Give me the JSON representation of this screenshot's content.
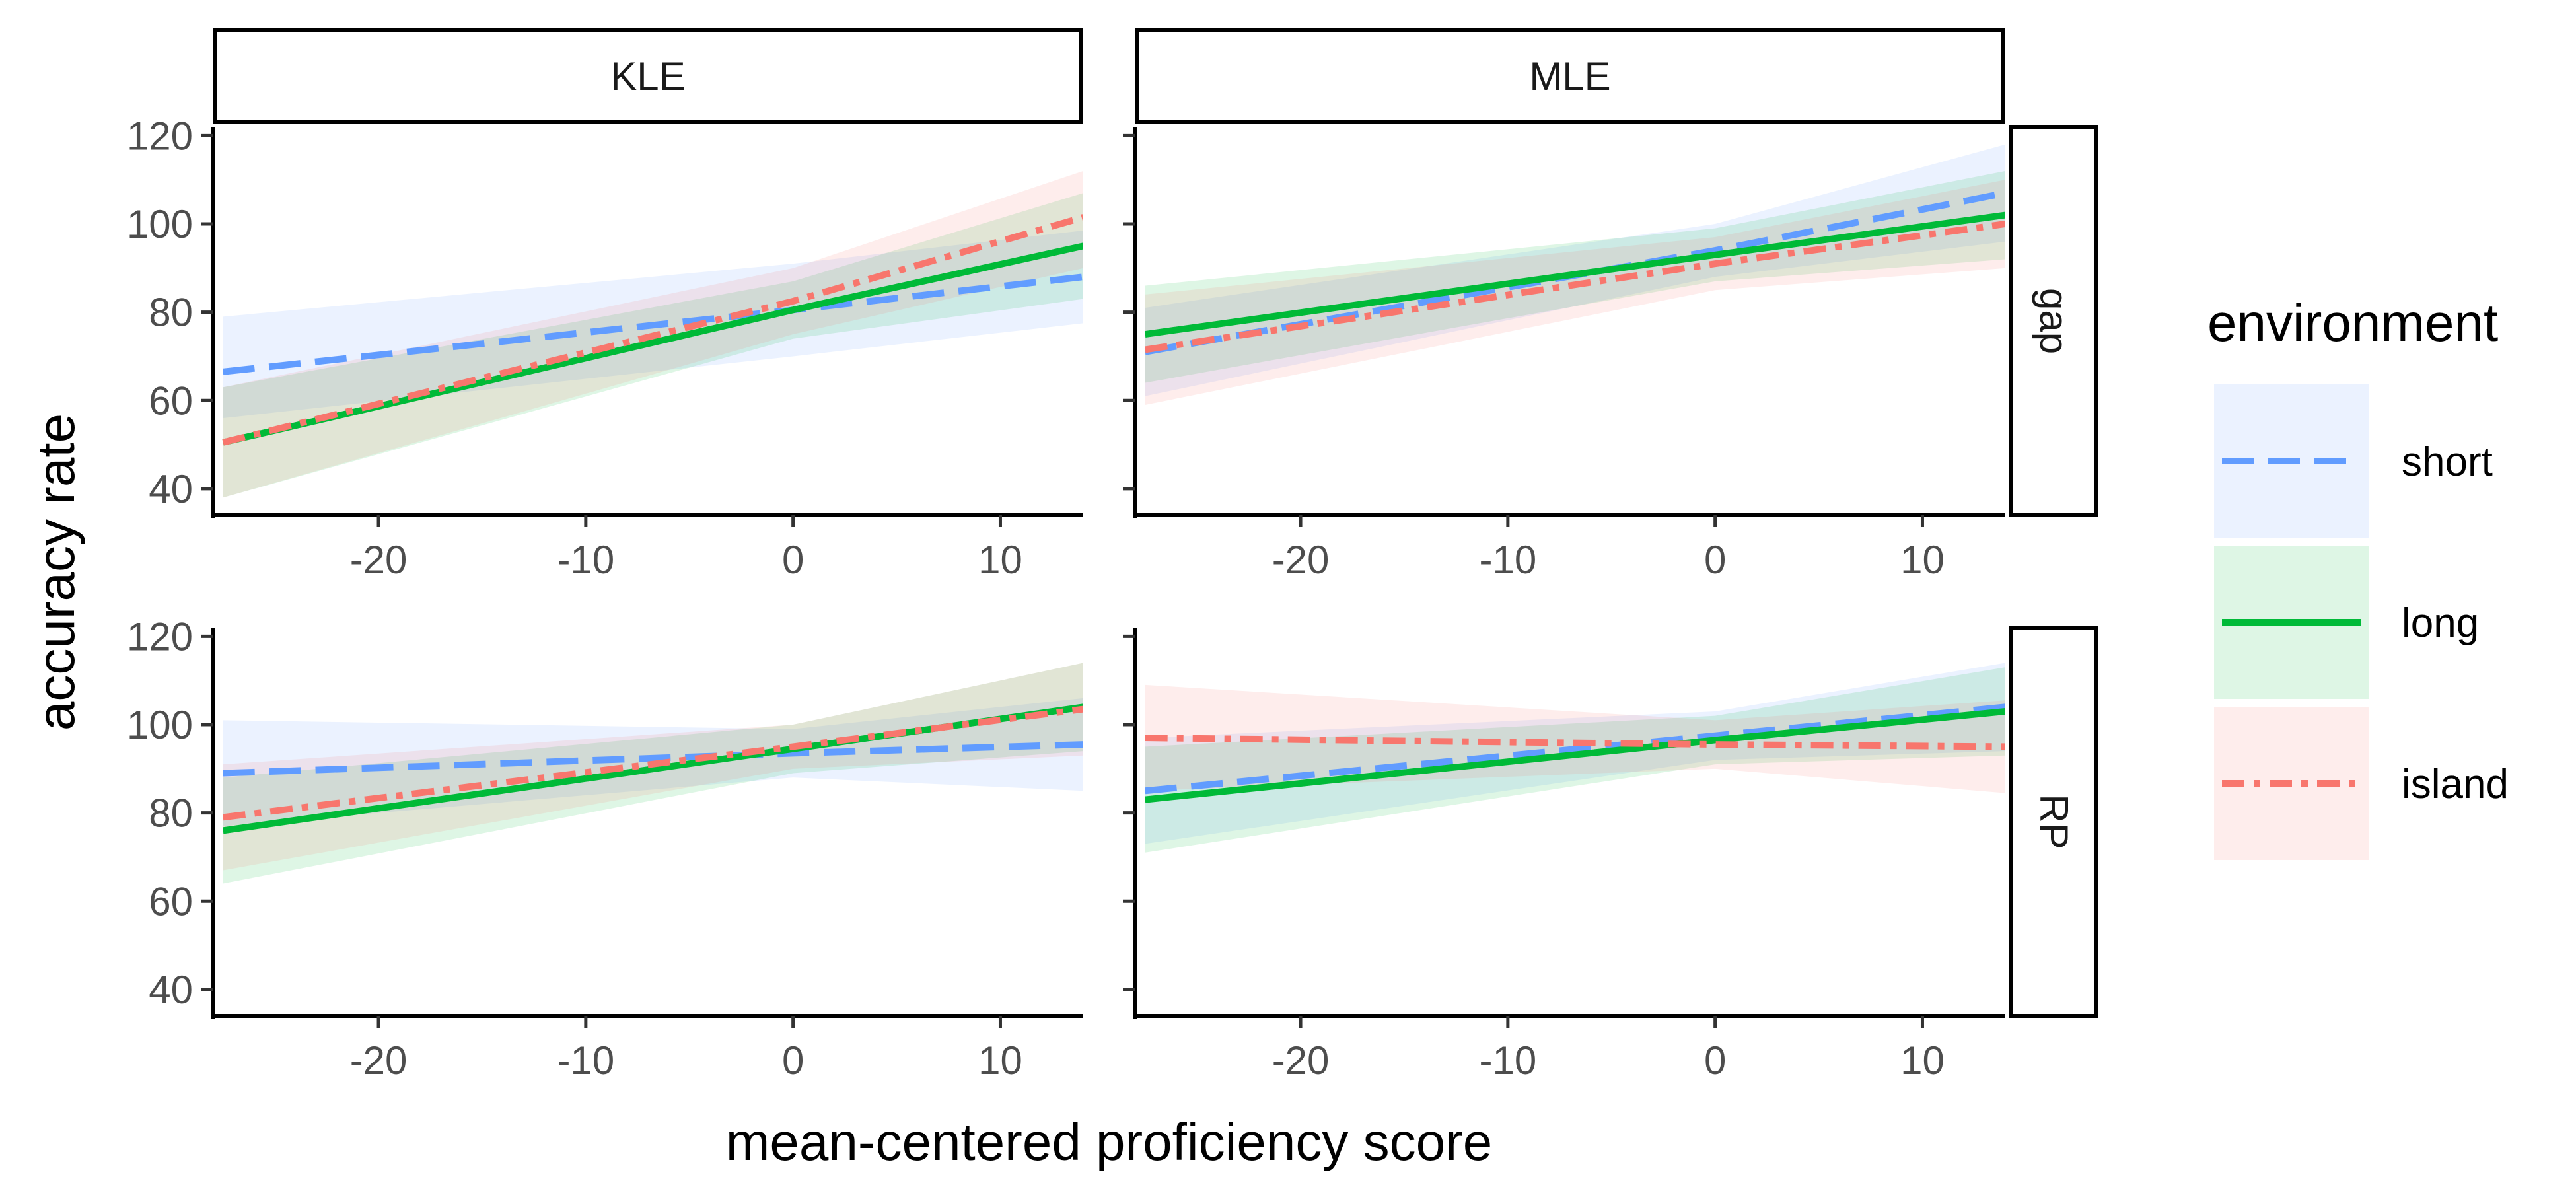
{
  "chart_data": {
    "type": "line",
    "facets": {
      "columns": [
        "KLE",
        "MLE"
      ],
      "rows": [
        "gap",
        "RP"
      ]
    },
    "xlabel": "mean-centered proficiency score",
    "ylabel": "accuracy rate",
    "xlim": [
      -28,
      14
    ],
    "ylim": [
      34,
      122
    ],
    "x_ticks": [
      -20,
      -10,
      0,
      10
    ],
    "x_tick_labels": [
      "-20",
      "-10",
      "0",
      "10"
    ],
    "y_ticks": [
      40,
      60,
      80,
      100,
      120
    ],
    "y_tick_labels": [
      "40",
      "60",
      "80",
      "100",
      "120"
    ],
    "legend": {
      "title": "environment",
      "placement": "right",
      "entries": [
        "short",
        "long",
        "island"
      ]
    },
    "series": [
      {
        "name": "short",
        "color": "#619CFF",
        "dash": "long-dash"
      },
      {
        "name": "long",
        "color": "#00BA38",
        "dash": "solid"
      },
      {
        "name": "island",
        "color": "#F8766D",
        "dash": "dot-dash"
      }
    ],
    "panels": [
      {
        "col": "KLE",
        "row": "gap",
        "lines": [
          {
            "series": "short",
            "x": [
              -27.5,
              0,
              14
            ],
            "y": [
              66.5,
              80.5,
              88
            ],
            "lower": [
              56,
              70,
              77.5
            ],
            "upper": [
              79,
              91,
              98.5
            ]
          },
          {
            "series": "long",
            "x": [
              -27.5,
              0,
              14
            ],
            "y": [
              50.5,
              80.5,
              95
            ],
            "lower": [
              38,
              74,
              83
            ],
            "upper": [
              63,
              87,
              107
            ]
          },
          {
            "series": "island",
            "x": [
              -27.5,
              0,
              14
            ],
            "y": [
              50.5,
              82.5,
              101.5
            ],
            "lower": [
              38,
              75,
              90
            ],
            "upper": [
              63,
              90,
              112
            ]
          }
        ]
      },
      {
        "col": "MLE",
        "row": "gap",
        "lines": [
          {
            "series": "short",
            "x": [
              -27.5,
              0,
              14
            ],
            "y": [
              71,
              94,
              107
            ],
            "lower": [
              61,
              88,
              96
            ],
            "upper": [
              81,
              100,
              118
            ]
          },
          {
            "series": "long",
            "x": [
              -27.5,
              0,
              14
            ],
            "y": [
              75,
              93,
              102
            ],
            "lower": [
              64,
              87,
              92
            ],
            "upper": [
              86,
              99,
              112
            ]
          },
          {
            "series": "island",
            "x": [
              -27.5,
              0,
              14
            ],
            "y": [
              71.5,
              91,
              100
            ],
            "lower": [
              59,
              85,
              90
            ],
            "upper": [
              84,
              97,
              110
            ]
          }
        ]
      },
      {
        "col": "KLE",
        "row": "RP",
        "lines": [
          {
            "series": "short",
            "x": [
              -27.5,
              0,
              14
            ],
            "y": [
              89,
              93.5,
              95.5
            ],
            "lower": [
              77,
              88,
              85
            ],
            "upper": [
              101,
              99,
              106
            ]
          },
          {
            "series": "long",
            "x": [
              -27.5,
              0,
              14
            ],
            "y": [
              76,
              94.5,
              104
            ],
            "lower": [
              64,
              89,
              94
            ],
            "upper": [
              88,
              100,
              114
            ]
          },
          {
            "series": "island",
            "x": [
              -27.5,
              0,
              14
            ],
            "y": [
              79,
              95,
              103.5
            ],
            "lower": [
              67,
              90,
              93
            ],
            "upper": [
              91,
              100,
              114
            ]
          }
        ]
      },
      {
        "col": "MLE",
        "row": "RP",
        "lines": [
          {
            "series": "short",
            "x": [
              -27.5,
              0,
              14
            ],
            "y": [
              85,
              97.5,
              104
            ],
            "lower": [
              73,
              92,
              94
            ],
            "upper": [
              97,
              103,
              114
            ]
          },
          {
            "series": "long",
            "x": [
              -27.5,
              0,
              14
            ],
            "y": [
              83,
              96.5,
              103
            ],
            "lower": [
              71,
              91,
              93
            ],
            "upper": [
              95,
              102,
              113
            ]
          },
          {
            "series": "island",
            "x": [
              -27.5,
              0,
              14
            ],
            "y": [
              97,
              95.5,
              95
            ],
            "lower": [
              85,
              90,
              84.5
            ],
            "upper": [
              109,
              101,
              105.5
            ]
          }
        ]
      }
    ]
  }
}
